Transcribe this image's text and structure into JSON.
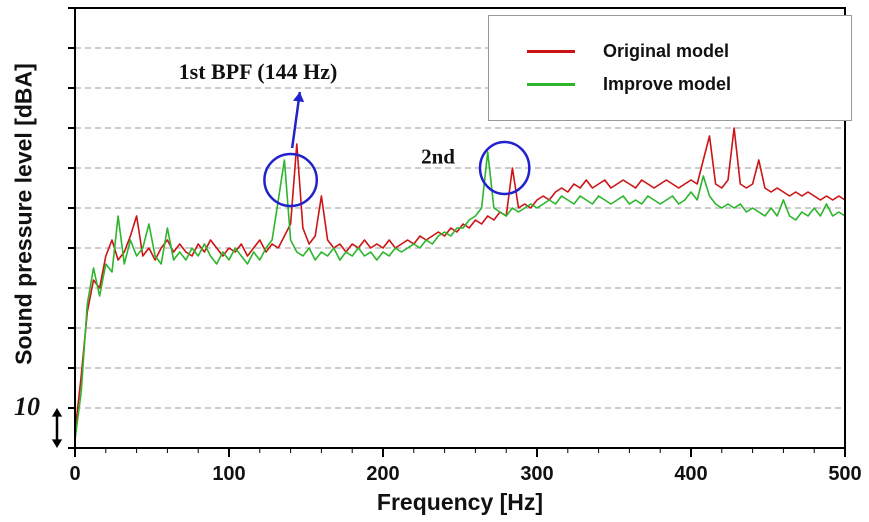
{
  "figure": {
    "xlabel": "Frequency [Hz]",
    "ylabel": "Sound pressure level [dBA]",
    "scale_label": "10"
  },
  "legend": {
    "items": [
      {
        "label": "Original model",
        "color": "#cc1414"
      },
      {
        "label": "Improve model",
        "color": "#2db52d"
      }
    ]
  },
  "annotations": {
    "bpf1": {
      "text": "1st BPF (144 Hz)"
    },
    "bpf2": {
      "text": "2nd"
    }
  },
  "chart_data": {
    "type": "line",
    "title": "",
    "xlabel": "Frequency [Hz]",
    "ylabel": "Sound pressure level [dBA]",
    "xlim": [
      0,
      500
    ],
    "ylim": [
      0,
      110
    ],
    "x_ticks": [
      0,
      100,
      200,
      300,
      400,
      500
    ],
    "x_minor_tick_step": 20,
    "y_grid_step": 10,
    "y_tick_labels_shown": false,
    "y_scale_note": "one vertical division = 10 dBA",
    "grid": "horizontal-dashed",
    "legend_position": "top-right",
    "x": [
      0,
      4,
      8,
      12,
      16,
      20,
      24,
      28,
      32,
      36,
      40,
      44,
      48,
      52,
      56,
      60,
      64,
      68,
      72,
      76,
      80,
      84,
      88,
      92,
      96,
      100,
      104,
      108,
      112,
      116,
      120,
      124,
      128,
      132,
      136,
      140,
      144,
      148,
      152,
      156,
      160,
      164,
      168,
      172,
      176,
      180,
      184,
      188,
      192,
      196,
      200,
      204,
      208,
      212,
      216,
      220,
      224,
      228,
      232,
      236,
      240,
      244,
      248,
      252,
      256,
      260,
      264,
      268,
      272,
      276,
      280,
      284,
      288,
      292,
      296,
      300,
      304,
      308,
      312,
      316,
      320,
      324,
      328,
      332,
      336,
      340,
      344,
      348,
      352,
      356,
      360,
      364,
      368,
      372,
      376,
      380,
      384,
      388,
      392,
      396,
      400,
      404,
      408,
      412,
      416,
      420,
      424,
      428,
      432,
      436,
      440,
      444,
      448,
      452,
      456,
      460,
      464,
      468,
      472,
      476,
      480,
      484,
      488,
      492,
      496,
      500
    ],
    "series": [
      {
        "name": "Original model",
        "color": "#cc1414",
        "values": [
          4,
          18,
          34,
          42,
          40,
          48,
          52,
          47,
          49,
          53,
          58,
          48,
          50,
          47,
          50,
          52,
          49,
          51,
          49,
          48,
          51,
          49,
          52,
          50,
          48,
          50,
          49,
          51,
          48,
          50,
          52,
          49,
          51,
          50,
          53,
          56,
          76,
          55,
          51,
          53,
          63,
          52,
          50,
          51,
          49,
          51,
          50,
          52,
          50,
          51,
          50,
          52,
          50,
          51,
          52,
          51,
          53,
          52,
          53,
          54,
          53,
          55,
          54,
          56,
          55,
          57,
          56,
          58,
          57,
          59,
          58,
          70,
          60,
          61,
          60,
          62,
          63,
          62,
          64,
          65,
          64,
          66,
          65,
          67,
          65,
          66,
          67,
          65,
          66,
          67,
          66,
          65,
          67,
          66,
          65,
          66,
          67,
          66,
          65,
          66,
          67,
          66,
          72,
          78,
          66,
          65,
          67,
          80,
          66,
          65,
          66,
          72,
          65,
          64,
          65,
          64,
          63,
          64,
          63,
          64,
          63,
          62,
          63,
          62,
          63,
          62
        ]
      },
      {
        "name": "Improve model",
        "color": "#2db52d",
        "values": [
          2,
          14,
          36,
          45,
          38,
          46,
          44,
          58,
          46,
          52,
          48,
          50,
          56,
          48,
          46,
          55,
          47,
          49,
          47,
          50,
          48,
          51,
          48,
          46,
          49,
          47,
          50,
          48,
          46,
          49,
          47,
          50,
          52,
          62,
          72,
          52,
          49,
          48,
          50,
          47,
          49,
          48,
          50,
          47,
          49,
          48,
          50,
          48,
          49,
          47,
          49,
          48,
          50,
          49,
          50,
          51,
          50,
          52,
          51,
          53,
          54,
          53,
          55,
          55,
          57,
          58,
          60,
          74,
          60,
          59,
          58,
          60,
          59,
          60,
          61,
          60,
          61,
          62,
          61,
          63,
          62,
          61,
          63,
          62,
          61,
          63,
          62,
          61,
          62,
          63,
          61,
          62,
          61,
          63,
          62,
          61,
          62,
          63,
          61,
          62,
          64,
          62,
          68,
          63,
          61,
          60,
          61,
          60,
          61,
          59,
          60,
          59,
          58,
          60,
          58,
          62,
          58,
          57,
          59,
          58,
          60,
          58,
          61,
          58,
          59,
          58
        ]
      }
    ],
    "annotations": [
      {
        "type": "circle",
        "x": 140,
        "y": 67,
        "rx_hz": 17,
        "ry_units": 6.5,
        "color": "#2222cc"
      },
      {
        "type": "circle",
        "x": 279,
        "y": 70,
        "rx_hz": 16,
        "ry_units": 6.5,
        "color": "#2222cc"
      },
      {
        "type": "arrow",
        "x1": 141,
        "y1": 75,
        "x2": 146,
        "y2": 89,
        "color": "#2222cc"
      },
      {
        "type": "label",
        "text": "1st BPF (144 Hz)",
        "x": 120,
        "y": 94
      },
      {
        "type": "label",
        "text": "2nd",
        "x": 247,
        "y": 73
      }
    ]
  }
}
